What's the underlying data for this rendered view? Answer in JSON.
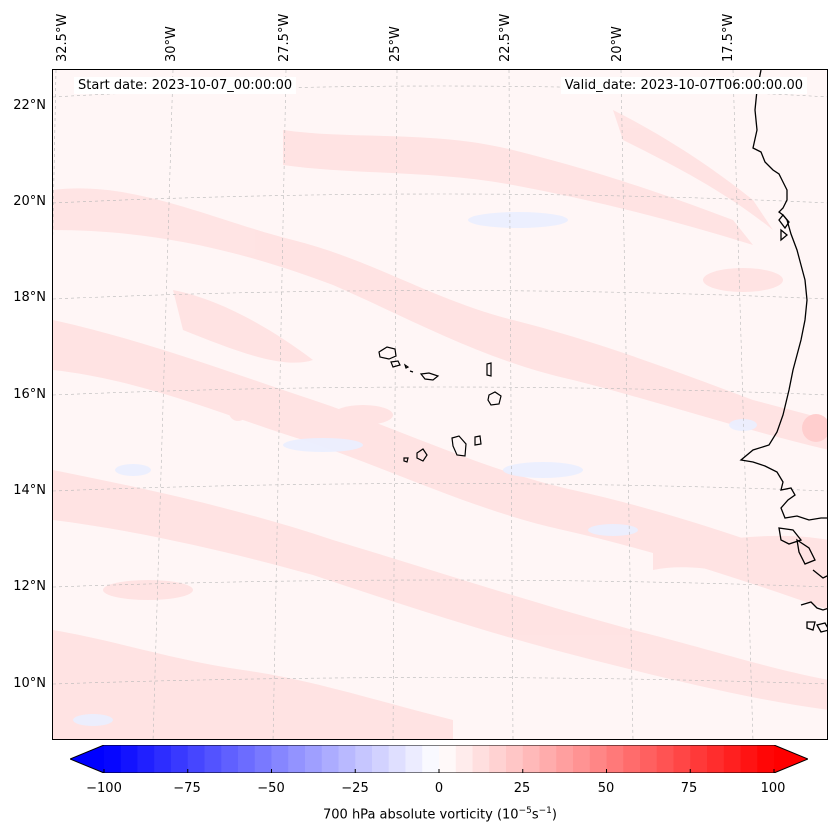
{
  "header": {
    "start_date": "Start date: 2023-10-07_00:00:00",
    "valid_date": "Valid_date: 2023-10-07T06:00:00.00"
  },
  "map": {
    "lon_labels": [
      "32.5°W",
      "30°W",
      "27.5°W",
      "25°W",
      "22.5°W",
      "20°W",
      "17.5°W"
    ],
    "lat_labels": [
      "22°N",
      "20°N",
      "18°N",
      "16°N",
      "14°N",
      "12°N",
      "10°N"
    ],
    "gridlines": true,
    "coastline_color": "#000000",
    "field_colors": {
      "background": "#fff6f6",
      "positive": "#ffe2e2",
      "negative": "#eef0ff"
    }
  },
  "colorbar": {
    "ticks": [
      "−100",
      "−75",
      "−50",
      "−25",
      "0",
      "25",
      "50",
      "75",
      "100"
    ],
    "label": "700 hPa absolute vorticity (10",
    "label_unit_a": "−5",
    "label_mid": "s",
    "label_unit_b": "−1",
    "label_end": ")",
    "min": -100,
    "max": 100,
    "color_min": "#0000ff",
    "color_mid": "#ffffff",
    "color_max": "#ff0000"
  }
}
